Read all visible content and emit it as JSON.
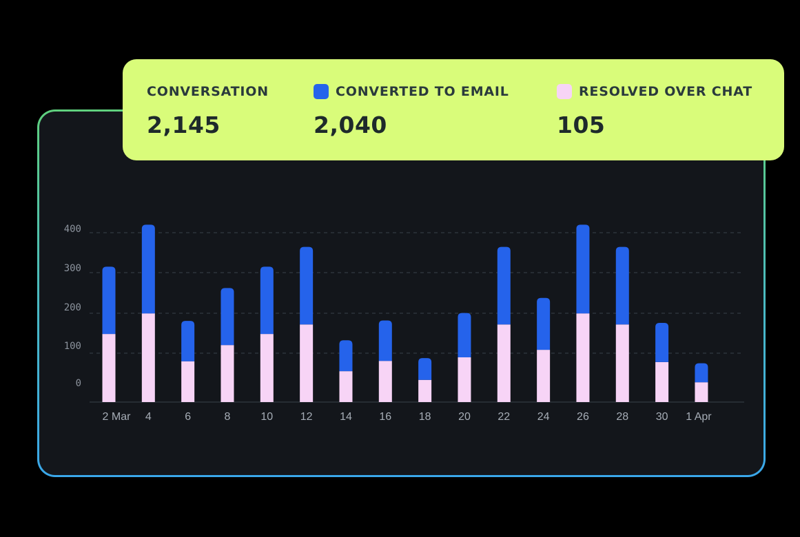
{
  "stats": {
    "conversation": {
      "label": "CONVERSATION",
      "value": "2,145"
    },
    "converted": {
      "label": "CONVERTED TO EMAIL",
      "value": "2,040",
      "color": "#2563eb"
    },
    "resolved": {
      "label": "RESOLVED OVER CHAT",
      "value": "105",
      "color": "#f7d4f6"
    }
  },
  "chart_data": {
    "type": "bar",
    "stacked": true,
    "title": "",
    "xlabel": "",
    "ylabel": "",
    "ylim": [
      0,
      400
    ],
    "grid": true,
    "yticks": [
      {
        "value": 0,
        "label": "0"
      },
      {
        "value": 100,
        "label": "100"
      },
      {
        "value": 200,
        "label": "200"
      },
      {
        "value": 300,
        "label": "300"
      },
      {
        "value": 400,
        "label": "400"
      }
    ],
    "categories": [
      "2 Mar",
      "4",
      "6",
      "8",
      "10",
      "12",
      "14",
      "16",
      "18",
      "20",
      "22",
      "24",
      "26",
      "28",
      "30",
      "1 Apr"
    ],
    "series": [
      {
        "name": "Resolved over chat",
        "color": "#f7d4f6",
        "values": [
          172,
          224,
          103,
          144,
          172,
          196,
          78,
          104,
          56,
          113,
          196,
          132,
          224,
          196,
          101,
          50
        ]
      },
      {
        "name": "Converted to email",
        "color": "#2563eb",
        "values": [
          170,
          224,
          102,
          144,
          170,
          196,
          78,
          102,
          55,
          112,
          196,
          131,
          224,
          196,
          99,
          48
        ]
      }
    ]
  }
}
